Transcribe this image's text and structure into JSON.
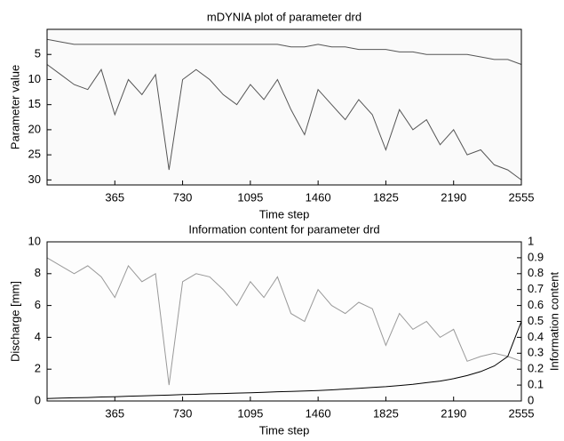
{
  "chart_data": [
    {
      "type": "line",
      "title": "mDYNIA plot of parameter drd",
      "x_label": "Time step",
      "y_label": "Parameter value",
      "x": [
        0,
        73,
        146,
        219,
        292,
        365,
        438,
        511,
        584,
        657,
        730,
        803,
        876,
        949,
        1022,
        1095,
        1168,
        1241,
        1314,
        1387,
        1460,
        1533,
        1606,
        1679,
        1752,
        1825,
        1898,
        1971,
        2044,
        2117,
        2190,
        2263,
        2336,
        2409,
        2482,
        2555
      ],
      "series": [
        {
          "color": "#555555",
          "values": [
            2,
            2.5,
            3,
            3,
            3,
            3,
            3,
            3,
            3,
            3,
            3,
            3,
            3,
            3,
            3,
            3,
            3,
            3,
            3.5,
            3.5,
            3,
            3.5,
            3.5,
            4,
            4,
            4,
            4.5,
            4.5,
            5,
            5,
            5,
            5,
            5.5,
            6,
            6,
            7
          ]
        },
        {
          "color": "#555555",
          "values": [
            7,
            9,
            11,
            12,
            8,
            17,
            10,
            13,
            9,
            28,
            10,
            8,
            10,
            13,
            15,
            11,
            14,
            10,
            16,
            21,
            12,
            15,
            18,
            14,
            17,
            24,
            16,
            20,
            18,
            23,
            20,
            25,
            24,
            27,
            28,
            30
          ]
        }
      ],
      "xlim": [
        0,
        2555
      ],
      "xticks": [
        365,
        730,
        1095,
        1460,
        1825,
        2190,
        2555
      ],
      "ylim": [
        0,
        31
      ],
      "yticks": [
        5,
        10,
        15,
        20,
        25,
        30
      ],
      "y_reversed": true,
      "grid": false
    },
    {
      "type": "line",
      "title": "Information content for parameter drd",
      "x_label": "Time step",
      "y_label": "Discharge [mm]",
      "y2_label": "Information content",
      "x": [
        0,
        73,
        146,
        219,
        292,
        365,
        438,
        511,
        584,
        657,
        730,
        803,
        876,
        949,
        1022,
        1095,
        1168,
        1241,
        1314,
        1387,
        1460,
        1533,
        1606,
        1679,
        1752,
        1825,
        1898,
        1971,
        2044,
        2117,
        2190,
        2263,
        2336,
        2409,
        2482,
        2555
      ],
      "series": [
        {
          "color": "#999999",
          "axis": "y2",
          "values": [
            0.9,
            0.85,
            0.8,
            0.85,
            0.78,
            0.65,
            0.85,
            0.75,
            0.8,
            0.1,
            0.75,
            0.8,
            0.78,
            0.7,
            0.6,
            0.75,
            0.65,
            0.78,
            0.55,
            0.5,
            0.7,
            0.6,
            0.55,
            0.62,
            0.58,
            0.35,
            0.55,
            0.45,
            0.5,
            0.4,
            0.45,
            0.25,
            0.28,
            0.3,
            0.28,
            0.25
          ]
        },
        {
          "color": "#000000",
          "values": [
            0.15,
            0.18,
            0.2,
            0.22,
            0.25,
            0.27,
            0.3,
            0.32,
            0.35,
            0.37,
            0.4,
            0.42,
            0.45,
            0.47,
            0.5,
            0.52,
            0.55,
            0.58,
            0.6,
            0.63,
            0.66,
            0.7,
            0.75,
            0.8,
            0.85,
            0.9,
            0.97,
            1.05,
            1.15,
            1.25,
            1.4,
            1.6,
            1.85,
            2.2,
            2.8,
            5.0
          ]
        }
      ],
      "xlim": [
        0,
        2555
      ],
      "xticks": [
        365,
        730,
        1095,
        1460,
        1825,
        2190,
        2555
      ],
      "ylim": [
        0,
        10
      ],
      "yticks": [
        0,
        2,
        4,
        6,
        8,
        10
      ],
      "y2lim": [
        0,
        1
      ],
      "y2ticks": [
        0,
        0.1,
        0.2,
        0.3,
        0.4,
        0.5,
        0.6,
        0.7,
        0.8,
        0.9,
        1
      ],
      "grid": false
    }
  ]
}
